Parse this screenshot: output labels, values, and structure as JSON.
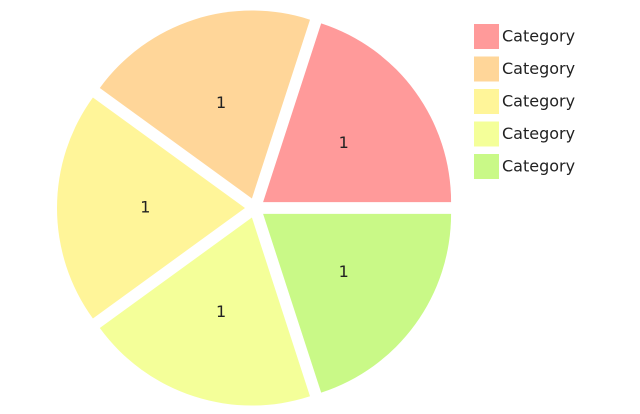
{
  "chart_data": {
    "type": "pie",
    "categories": [
      "Category",
      "Category",
      "Category",
      "Category",
      "Category"
    ],
    "values": [
      1,
      1,
      1,
      1,
      1
    ],
    "colors": [
      "#ff9a9a",
      "#ffd699",
      "#fff599",
      "#f4ff99",
      "#c9f987"
    ],
    "exploded": true
  }
}
